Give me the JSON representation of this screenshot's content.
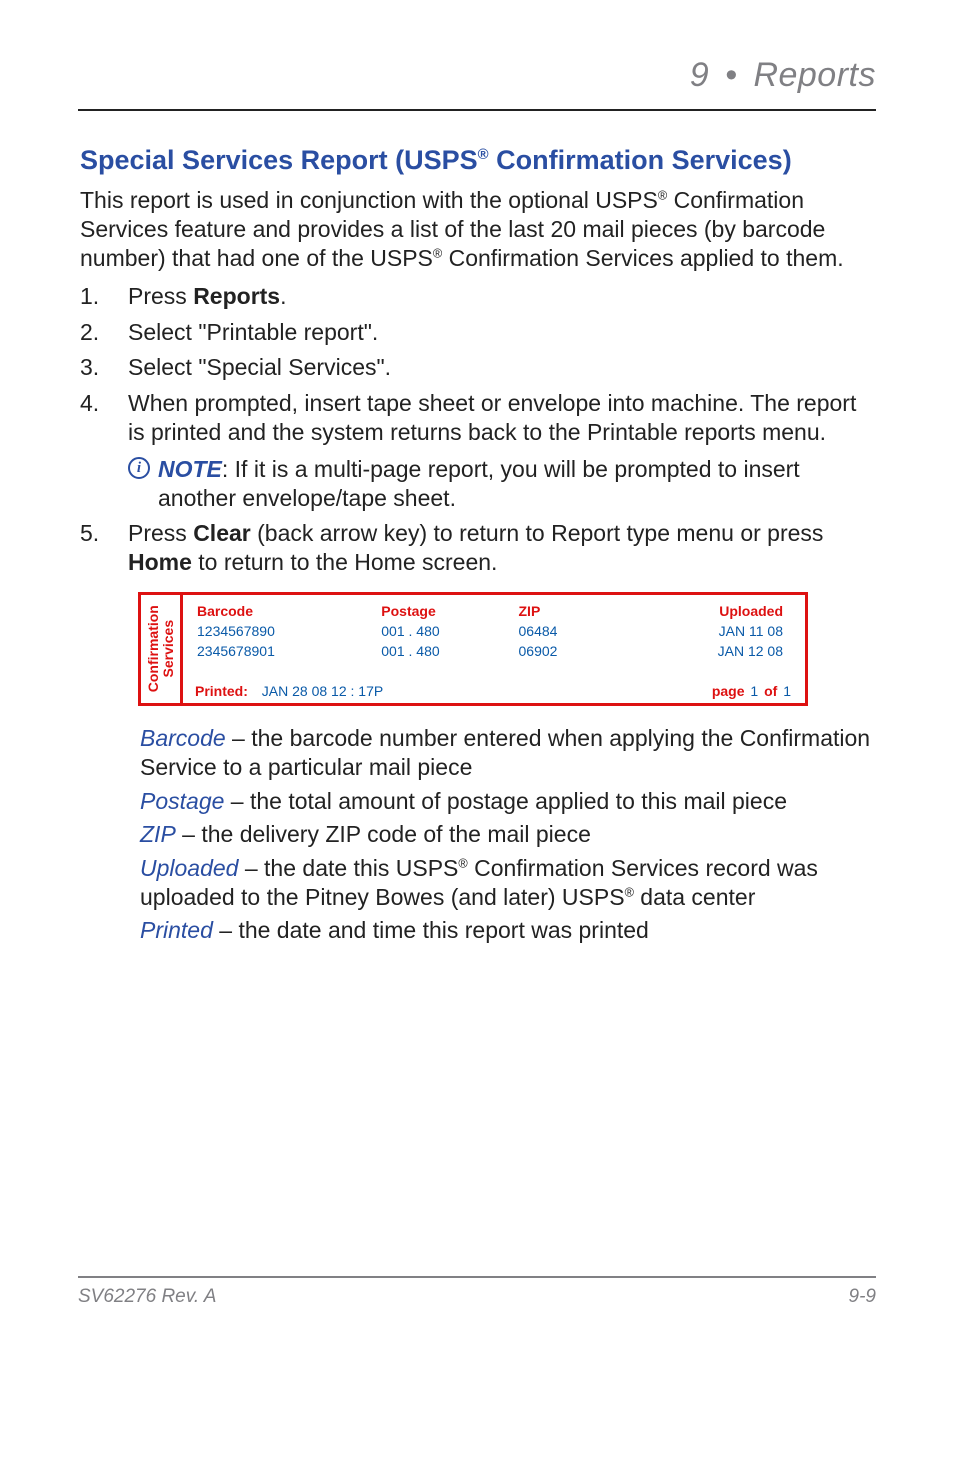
{
  "header": {
    "chapter_num": "9",
    "bullet": "•",
    "chapter_title": "Reports"
  },
  "title": {
    "pre": "Special Services Report (USPS",
    "reg": "®",
    "post": " Confirmation Services)"
  },
  "intro": {
    "t1": "This report is used in conjunction with the optional USPS",
    "reg1": "®",
    "t2": " Confirma­tion Services feature and provides a list of the last 20 mail pieces (by barcode number) that had one of the USPS",
    "reg2": "®",
    "t3": " Confirmation Services applied to them."
  },
  "steps": {
    "s1a": "Press ",
    "s1b": "Reports",
    "s1c": ".",
    "s2": "Select \"Printable report\".",
    "s3": "Select \"Special Services\".",
    "s4": "When prompted, insert tape sheet or envelope into machine. The report is printed and the system returns back to the Printable re­ports menu.",
    "note_lead": "NOTE",
    "note_body": ": If it is a multi-page report, you will be prompted to insert another envelope/tape sheet.",
    "s5a": "Press ",
    "s5b": "Clear",
    "s5c": " (back arrow key) to return to Report type menu or press ",
    "s5d": "Home",
    "s5e": " to return to the Home screen."
  },
  "report": {
    "side_line1": "Confirmation",
    "side_line2": "Services",
    "headers": {
      "barcode": "Barcode",
      "postage": "Postage",
      "zip": "ZIP",
      "uploaded": "Uploaded"
    },
    "rows": [
      {
        "barcode": "1234567890",
        "postage": "001 . 480",
        "zip": "06484",
        "uploaded": "JAN 11 08"
      },
      {
        "barcode": "2345678901",
        "postage": "001 . 480",
        "zip": "06902",
        "uploaded": "JAN 12 08"
      }
    ],
    "printed_label": "Printed:",
    "printed_value": "JAN 28 08   12 : 17P",
    "pager_pre": "page ",
    "pager_cur": "1",
    "pager_mid": " of ",
    "pager_tot": "1"
  },
  "defs": {
    "barcode_term": "Barcode",
    "barcode_body": " – the barcode number entered when applying the Con­firmation Service to a particular mail piece",
    "postage_term": "Postage",
    "postage_body": " – the total amount of postage applied to this mail piece",
    "zip_term": "ZIP",
    "zip_body": " – the delivery ZIP code of the mail piece",
    "uploaded_term": "Uploaded",
    "uploaded_b1": " – the date this USPS",
    "uploaded_reg1": "®",
    "uploaded_b2": " Confirmation Services record was uploaded to the Pitney Bowes (and later) USPS",
    "uploaded_reg2": "®",
    "uploaded_b3": " data center",
    "printed_term": "Printed",
    "printed_body": " – the date and time this report was printed"
  },
  "footer": {
    "left": "SV62276 Rev. A",
    "right": "9-9"
  }
}
